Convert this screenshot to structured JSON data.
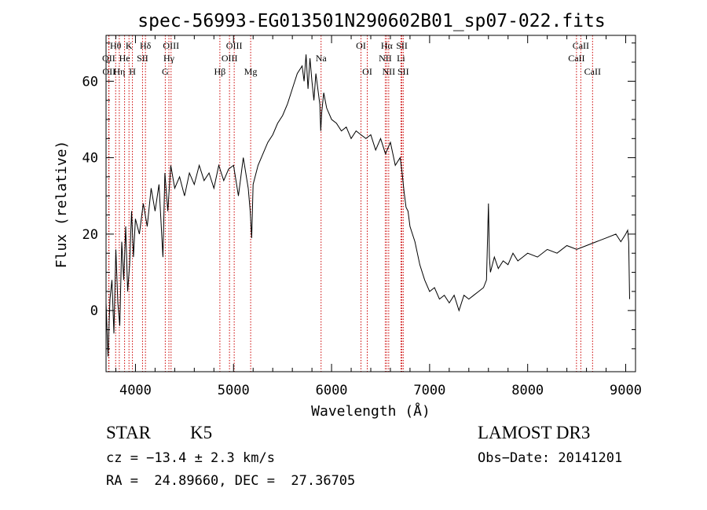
{
  "chart_data": {
    "type": "line",
    "title": "spec-56993-EG013501N290602B01_sp07-022.fits",
    "xlabel": "Wavelength (Å)",
    "ylabel": "Flux (relative)",
    "xlim": [
      3700,
      9100
    ],
    "ylim": [
      -16,
      72
    ],
    "xticks": [
      4000,
      5000,
      6000,
      7000,
      8000,
      9000
    ],
    "yticks": [
      0,
      20,
      40,
      60
    ],
    "grid": false,
    "line_color": "#000000",
    "marker_color": "#cc0000",
    "spectrum": {
      "x": [
        3700,
        3720,
        3740,
        3760,
        3780,
        3800,
        3820,
        3840,
        3860,
        3880,
        3900,
        3920,
        3940,
        3960,
        3980,
        4000,
        4040,
        4080,
        4120,
        4160,
        4200,
        4240,
        4280,
        4300,
        4330,
        4360,
        4400,
        4450,
        4500,
        4550,
        4600,
        4650,
        4700,
        4750,
        4800,
        4850,
        4900,
        4950,
        5000,
        5050,
        5100,
        5150,
        5170,
        5185,
        5200,
        5250,
        5300,
        5350,
        5400,
        5450,
        5500,
        5550,
        5600,
        5650,
        5700,
        5720,
        5740,
        5760,
        5780,
        5800,
        5820,
        5840,
        5860,
        5880,
        5890,
        5900,
        5920,
        5950,
        6000,
        6050,
        6100,
        6150,
        6200,
        6250,
        6300,
        6350,
        6400,
        6450,
        6500,
        6550,
        6600,
        6650,
        6700,
        6720,
        6740,
        6760,
        6780,
        6800,
        6850,
        6900,
        6950,
        7000,
        7050,
        7100,
        7150,
        7200,
        7250,
        7300,
        7350,
        7400,
        7450,
        7500,
        7550,
        7580,
        7600,
        7610,
        7620,
        7640,
        7660,
        7700,
        7750,
        7800,
        7850,
        7900,
        7950,
        8000,
        8100,
        8200,
        8300,
        8400,
        8500,
        8600,
        8700,
        8800,
        8900,
        8950,
        9000,
        9020,
        9030,
        9040
      ],
      "y": [
        2,
        -12,
        3,
        8,
        -6,
        16,
        2,
        -4,
        18,
        8,
        22,
        5,
        12,
        26,
        14,
        24,
        20,
        28,
        22,
        32,
        26,
        33,
        14,
        36,
        26,
        38,
        32,
        35,
        30,
        36,
        33,
        38,
        34,
        36,
        32,
        38,
        34,
        37,
        38,
        30,
        40,
        32,
        26,
        19,
        33,
        38,
        41,
        44,
        46,
        49,
        51,
        54,
        58,
        62,
        64,
        60,
        67,
        58,
        66,
        60,
        55,
        62,
        58,
        54,
        47,
        52,
        57,
        53,
        50,
        49,
        47,
        48,
        45,
        47,
        46,
        45,
        46,
        42,
        45,
        41,
        44,
        38,
        40,
        36,
        31,
        27,
        26,
        22,
        18,
        12,
        8,
        5,
        6,
        3,
        4,
        2,
        4,
        0,
        4,
        3,
        4,
        5,
        6,
        8,
        28,
        14,
        10,
        12,
        14,
        11,
        13,
        12,
        15,
        13,
        14,
        15,
        14,
        16,
        15,
        17,
        16,
        17,
        18,
        19,
        20,
        18,
        20,
        21,
        18,
        3
      ]
    },
    "lines": [
      {
        "label": "Hθ",
        "x": 3798,
        "row": 1
      },
      {
        "label": "OII",
        "x": 3727,
        "row": 2
      },
      {
        "label": "OII",
        "x": 3730,
        "row": 3
      },
      {
        "label": "Hη",
        "x": 3835,
        "row": 3
      },
      {
        "label": "He",
        "x": 3889,
        "row": 2
      },
      {
        "label": "K",
        "x": 3934,
        "row": 1
      },
      {
        "label": "H",
        "x": 3969,
        "row": 3
      },
      {
        "label": "SII",
        "x": 4072,
        "row": 2
      },
      {
        "label": "Hδ",
        "x": 4102,
        "row": 1
      },
      {
        "label": "OIII",
        "x": 4363,
        "row": 1
      },
      {
        "label": "Hγ",
        "x": 4341,
        "row": 2
      },
      {
        "label": "G",
        "x": 4304,
        "row": 3
      },
      {
        "label": "Hβ",
        "x": 4861,
        "row": 3
      },
      {
        "label": "OIII",
        "x": 5007,
        "row": 1
      },
      {
        "label": "OIII",
        "x": 4959,
        "row": 2
      },
      {
        "label": "Mg",
        "x": 5175,
        "row": 3
      },
      {
        "label": "Na",
        "x": 5893,
        "row": 2
      },
      {
        "label": "OI",
        "x": 6300,
        "row": 1
      },
      {
        "label": "OI",
        "x": 6364,
        "row": 3
      },
      {
        "label": "Hα",
        "x": 6563,
        "row": 1
      },
      {
        "label": "NII",
        "x": 6548,
        "row": 2
      },
      {
        "label": "NII",
        "x": 6583,
        "row": 3
      },
      {
        "label": "SII",
        "x": 6717,
        "row": 1
      },
      {
        "label": "Li",
        "x": 6708,
        "row": 2
      },
      {
        "label": "SII",
        "x": 6731,
        "row": 3
      },
      {
        "label": "CaII",
        "x": 8542,
        "row": 1
      },
      {
        "label": "CaII",
        "x": 8498,
        "row": 2
      },
      {
        "label": "CaII",
        "x": 8662,
        "row": 3
      }
    ]
  },
  "info": {
    "class": "STAR",
    "subclass": "K5",
    "survey": "LAMOST DR3",
    "cz": "cz = −13.4 ± 2.3 km/s",
    "obsdate": "Obs−Date: 20141201",
    "radec": "RA =  24.89660, DEC =  27.36705"
  }
}
